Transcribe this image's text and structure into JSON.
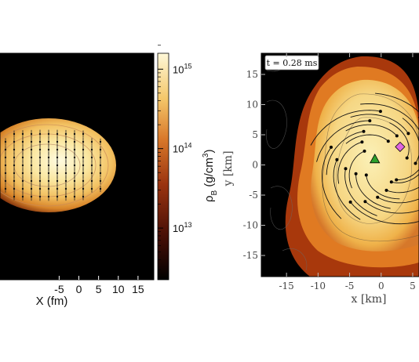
{
  "figure": {
    "left_panel": {
      "xlabel": "X (fm)",
      "x_ticks": [
        "-5",
        "0",
        "5",
        "10",
        "15"
      ],
      "colorbar": {
        "label": "ρB (g/cm3)",
        "label_main": "ρ",
        "label_sub": "B",
        "label_rest": " (g/cm",
        "label_sup": "3",
        "label_close": ")",
        "ticks": [
          {
            "base": "10",
            "exp": "15"
          },
          {
            "base": "10",
            "exp": "14"
          },
          {
            "base": "10",
            "exp": "13"
          }
        ]
      }
    },
    "right_panel": {
      "time_label": "t = 0.28 ms",
      "xlabel": "x [km]",
      "ylabel": "y [km]",
      "x_ticks": [
        "-15",
        "-10",
        "-5",
        "0",
        "5"
      ],
      "y_ticks": [
        "15",
        "10",
        "5",
        "0",
        "-5",
        "-10",
        "-15"
      ],
      "markers": [
        {
          "shape": "triangle",
          "color": "#2ca02c"
        },
        {
          "shape": "diamond",
          "color": "#e066e0"
        }
      ]
    }
  },
  "chart_data": [
    {
      "type": "heatmap",
      "xlabel": "X (fm)",
      "x_ticks": [
        -5,
        0,
        5,
        10,
        15
      ],
      "xlim": [
        -20,
        19
      ],
      "colorbar_label": "ρB (g/cm3)",
      "colorbar_scale": "log",
      "colorbar_ticks": [
        1000000000000000.0,
        100000000000000.0,
        10000000000000.0
      ],
      "colors": [
        "#000000",
        "#5a1708",
        "#a03a10",
        "#e08a2a",
        "#f6cc6a",
        "#fdf4c4"
      ]
    },
    {
      "type": "heatmap",
      "xlabel": "x [km]",
      "ylabel": "y [km]",
      "x_ticks": [
        -15,
        -10,
        -5,
        0,
        5
      ],
      "y_ticks": [
        15,
        10,
        5,
        0,
        -5,
        -10,
        -15
      ],
      "xlim": [
        -19,
        6
      ],
      "ylim": [
        -18.5,
        18.5
      ],
      "annotation": "t = 0.28 ms",
      "markers": [
        {
          "shape": "triangle",
          "color": "#2ca02c",
          "x": -1,
          "y": 1
        },
        {
          "shape": "diamond",
          "color": "#e066e0",
          "x": 3,
          "y": 3
        }
      ]
    }
  ]
}
